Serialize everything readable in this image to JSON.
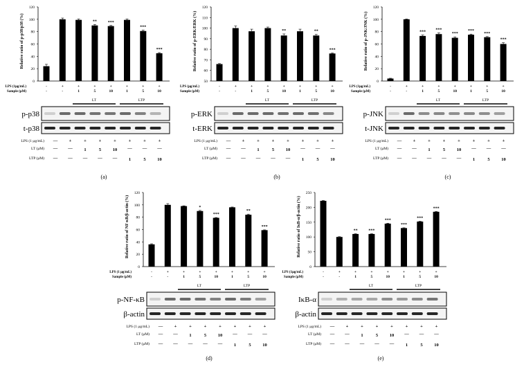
{
  "common": {
    "sample_row_label": "Sample (μM)",
    "lps_signs": [
      "-",
      "+",
      "+",
      "+",
      "+",
      "+",
      "+",
      "+"
    ],
    "sample_values": [
      "-",
      "-",
      "1",
      "5",
      "10",
      "1",
      "5",
      "10"
    ],
    "group_labels": [
      "LT",
      "LTP"
    ],
    "treat_rows": [
      {
        "label": "LPS (1 μg/mL)",
        "values": [
          "—",
          "+",
          "+",
          "+",
          "+",
          "+",
          "+",
          "+"
        ]
      },
      {
        "label": "LT (μM)",
        "values": [
          "—",
          "—",
          "1",
          "5",
          "10",
          "—",
          "—",
          "—"
        ]
      },
      {
        "label": "LTP (μM)",
        "values": [
          "—",
          "—",
          "—",
          "—",
          "—",
          "1",
          "5",
          "10"
        ]
      }
    ]
  },
  "chart_data": [
    {
      "panel": "(a)",
      "type": "bar",
      "ylabel": "Relative ratio of p-p38/p38 (%)",
      "lps_label": "LPS (1μg/mL)",
      "ylim": [
        0,
        120
      ],
      "ystep": 20,
      "values": [
        24,
        100,
        99,
        90,
        89,
        99,
        81,
        45
      ],
      "errors": [
        3,
        2,
        1.5,
        1.5,
        1,
        1.5,
        1.5,
        1
      ],
      "significance": [
        "",
        "",
        "",
        "**",
        "***",
        "",
        "***",
        "***"
      ],
      "blot_labels": [
        "p-p38",
        "t-p38"
      ]
    },
    {
      "panel": "(b)",
      "type": "bar",
      "ylabel": "Relative ratio of p-ERK/ERK (%)",
      "lps_label": "LPS (μg/mL)",
      "ylim": [
        50,
        120
      ],
      "ystep": 10,
      "values": [
        66,
        100,
        97,
        100,
        93,
        97,
        93,
        76
      ],
      "errors": [
        0.5,
        2,
        2,
        1,
        1.5,
        2,
        1,
        0.5
      ],
      "significance": [
        "",
        "",
        "",
        "",
        "**",
        "",
        "**",
        "***"
      ],
      "blot_labels": [
        "p-ERK",
        "t-ERK"
      ]
    },
    {
      "panel": "(c)",
      "type": "bar",
      "ylabel": "Relative ratio of p-JNK/JNK (%)",
      "lps_label": "LPS (1μg/mL)",
      "ylim": [
        0,
        120
      ],
      "ystep": 20,
      "values": [
        4,
        100,
        73,
        76,
        70,
        75,
        71,
        60
      ],
      "errors": [
        0.5,
        0.5,
        1.5,
        2,
        1.5,
        1,
        1,
        2
      ],
      "significance": [
        "",
        "",
        "***",
        "***",
        "***",
        "***",
        "***",
        "***"
      ],
      "blot_labels": [
        "p-JNK",
        "t-JNK"
      ]
    },
    {
      "panel": "(d)",
      "type": "bar",
      "ylabel": "Relative ratio of NF-κB/β-actin (%)",
      "lps_label": "LPS (1 μg/mL)",
      "ylim": [
        0,
        120
      ],
      "ystep": 20,
      "values": [
        36,
        100,
        98,
        90,
        79,
        96,
        84,
        59
      ],
      "errors": [
        1,
        2,
        0.5,
        1,
        0.5,
        0.5,
        1,
        0.5
      ],
      "significance": [
        "",
        "",
        "",
        "*",
        "***",
        "",
        "**",
        "***"
      ],
      "blot_labels": [
        "p-NF-κB",
        "β-actin"
      ]
    },
    {
      "panel": "(e)",
      "type": "bar",
      "ylabel": "Relative ratio of IκB-α/β-actin (%)",
      "lps_label": "LPS (1μg/mL)",
      "ylim": [
        0,
        250
      ],
      "ystep": 50,
      "values": [
        222,
        100,
        110,
        110,
        145,
        130,
        152,
        185
      ],
      "errors": [
        1,
        1,
        1,
        1,
        1.5,
        1,
        1,
        1
      ],
      "significance": [
        "",
        "",
        "**",
        "***",
        "***",
        "***",
        "***",
        "***"
      ],
      "blot_labels": [
        "IκB-α",
        "β-actin"
      ]
    }
  ]
}
